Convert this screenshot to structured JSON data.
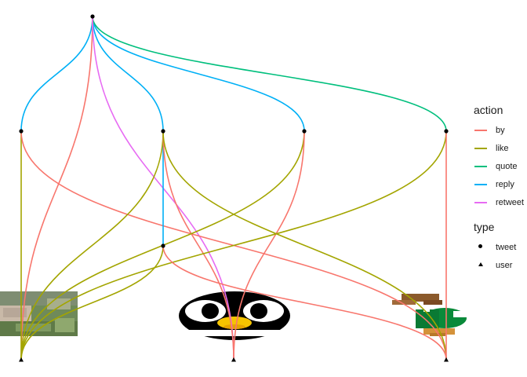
{
  "legend": {
    "action_title": "action",
    "actions": [
      {
        "label": "by",
        "color": "#F8766D"
      },
      {
        "label": "like",
        "color": "#A3A500"
      },
      {
        "label": "quote",
        "color": "#00BF7D"
      },
      {
        "label": "reply",
        "color": "#00B0F6"
      },
      {
        "label": "retweet",
        "color": "#E76BF3"
      }
    ],
    "type_title": "type",
    "types": [
      {
        "label": "tweet",
        "shape": "dot"
      },
      {
        "label": "user",
        "shape": "triangle"
      }
    ]
  },
  "graph": {
    "nodes": [
      {
        "id": "t0",
        "type": "tweet"
      },
      {
        "id": "t1",
        "type": "tweet"
      },
      {
        "id": "t2",
        "type": "tweet"
      },
      {
        "id": "t3",
        "type": "tweet"
      },
      {
        "id": "t4",
        "type": "tweet"
      },
      {
        "id": "t5",
        "type": "tweet"
      },
      {
        "id": "u1",
        "type": "user",
        "avatar": "photo-avatar"
      },
      {
        "id": "u2",
        "type": "user",
        "avatar": "penguin-avatar"
      },
      {
        "id": "u3",
        "type": "user",
        "avatar": "duck-avatar"
      }
    ],
    "edges": [
      {
        "from": "t0",
        "to": "t1",
        "action": "reply"
      },
      {
        "from": "t0",
        "to": "t2",
        "action": "reply"
      },
      {
        "from": "t0",
        "to": "t3",
        "action": "reply"
      },
      {
        "from": "t0",
        "to": "t4",
        "action": "quote"
      },
      {
        "from": "t0",
        "to": "u1",
        "action": "by"
      },
      {
        "from": "t0",
        "to": "u2",
        "action": "retweet"
      },
      {
        "from": "t1",
        "to": "u1",
        "action": "like"
      },
      {
        "from": "t1",
        "to": "u3",
        "action": "by"
      },
      {
        "from": "t2",
        "to": "t5",
        "action": "reply"
      },
      {
        "from": "t2",
        "to": "u1",
        "action": "like"
      },
      {
        "from": "t2",
        "to": "u2",
        "action": "by"
      },
      {
        "from": "t2",
        "to": "u3",
        "action": "like"
      },
      {
        "from": "t3",
        "to": "u1",
        "action": "like"
      },
      {
        "from": "t3",
        "to": "u2",
        "action": "by"
      },
      {
        "from": "t4",
        "to": "u1",
        "action": "like"
      },
      {
        "from": "t4",
        "to": "u3",
        "action": "by"
      },
      {
        "from": "t5",
        "to": "u1",
        "action": "like"
      },
      {
        "from": "t5",
        "to": "u3",
        "action": "by"
      }
    ]
  }
}
